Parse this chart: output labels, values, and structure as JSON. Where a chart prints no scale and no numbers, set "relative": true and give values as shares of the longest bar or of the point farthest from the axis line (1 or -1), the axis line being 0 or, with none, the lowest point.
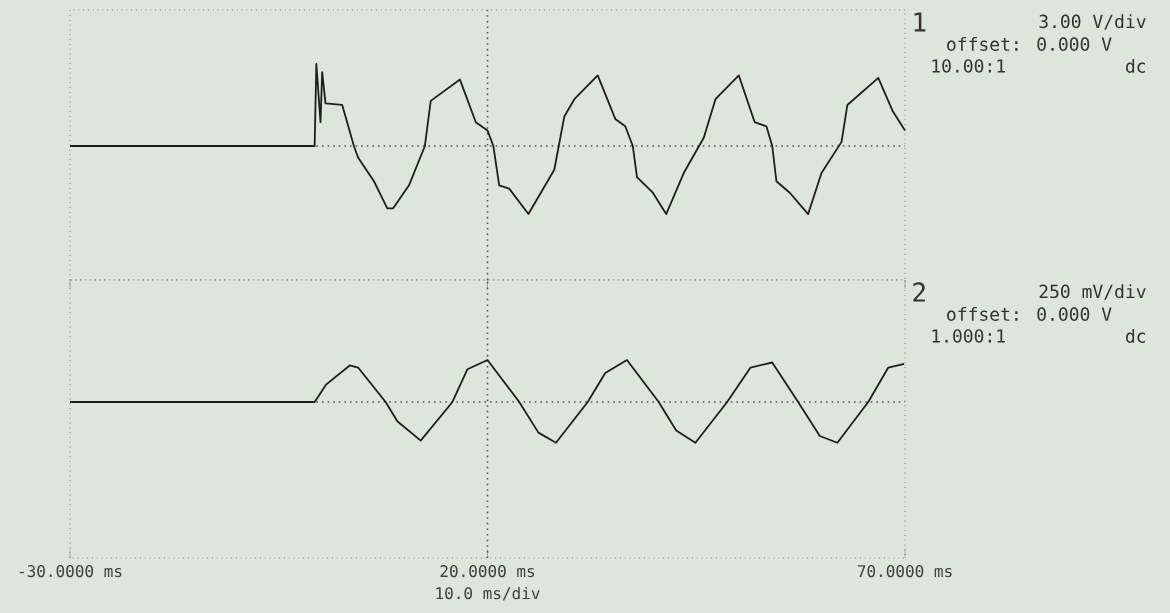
{
  "chart_data": [
    {
      "type": "line",
      "relative": true,
      "xlim": [
        -30,
        70
      ],
      "tick_labels": false,
      "grid": false,
      "annotations": [
        "1",
        "3.00 V/div",
        "offset: 0.000 V",
        "10.00:1",
        "dc"
      ],
      "ref_lines": [
        {
          "axis": "y",
          "value": 0,
          "line_style": "dotted",
          "color": "#555555"
        },
        {
          "axis": "x",
          "value": 20,
          "line_style": "dotted",
          "color": "#555555"
        }
      ],
      "series": [
        {
          "color": "#1e1e1e",
          "x": [
            -30,
            -0.7,
            -0.5,
            0,
            0.2,
            0.6,
            2.6,
            4.0,
            4.5,
            6.4,
            8.0,
            8.7,
            10.6,
            12.5,
            13.2,
            16.7,
            18.6,
            20,
            20.7,
            21.4,
            22.6,
            24.9,
            28,
            29.2,
            30.4,
            33.2,
            35.3,
            36.5,
            37.4,
            37.9,
            39.8,
            41.4,
            43.5,
            45.9,
            47.3,
            50.1,
            52,
            53.4,
            54.1,
            54.6,
            56.2,
            58.4,
            60,
            62.4,
            63.1,
            66.8,
            68.5,
            70
          ],
          "values": [
            0,
            0,
            1.0,
            0.29,
            0.9,
            0.52,
            0.5,
            0,
            -0.14,
            -0.43,
            -0.76,
            -0.76,
            -0.48,
            0,
            0.55,
            0.81,
            0.29,
            0.19,
            0,
            -0.48,
            -0.52,
            -0.83,
            -0.29,
            0.36,
            0.57,
            0.86,
            0.33,
            0.24,
            0,
            -0.38,
            -0.57,
            -0.83,
            -0.33,
            0.1,
            0.57,
            0.86,
            0.29,
            0.24,
            0,
            -0.43,
            -0.57,
            -0.83,
            -0.33,
            0.05,
            0.5,
            0.83,
            0.43,
            0.19
          ]
        }
      ]
    },
    {
      "type": "line",
      "relative": true,
      "xlim": [
        -30,
        70
      ],
      "xticks": [
        {
          "value": -30,
          "label": "-30.0000 ms"
        },
        {
          "value": 20,
          "label": "20.0000 ms"
        },
        {
          "value": 70,
          "label": "70.0000 ms"
        }
      ],
      "tick_labels": "x",
      "grid": false,
      "xlabel": "10.0 ms/div",
      "annotations": [
        "2",
        "250 mV/div",
        "offset: 0.000 V",
        "1.000:1",
        "dc"
      ],
      "ref_lines": [
        {
          "axis": "y",
          "value": 0,
          "line_style": "dotted",
          "color": "#555555"
        },
        {
          "axis": "x",
          "value": 20,
          "line_style": "dotted",
          "color": "#555555"
        }
      ],
      "series": [
        {
          "color": "#1e1e1e",
          "x": [
            -30,
            -0.7,
            0.7,
            3.5,
            4.5,
            7.8,
            9.2,
            12,
            15.8,
            17.6,
            20,
            23.8,
            26.1,
            28.2,
            32,
            34.1,
            36.7,
            40.5,
            42.6,
            44.9,
            48.7,
            51.5,
            54.1,
            57.2,
            59.8,
            61.9,
            65.6,
            68,
            69.9
          ],
          "values": [
            0,
            0,
            0.42,
            0.87,
            0.82,
            0,
            -0.46,
            -0.92,
            0,
            0.78,
            1.0,
            0,
            -0.73,
            -0.97,
            0,
            0.69,
            1.0,
            0,
            -0.68,
            -0.97,
            0,
            0.82,
            0.94,
            0,
            -0.81,
            -0.97,
            0,
            0.82,
            0.91
          ]
        }
      ]
    }
  ]
}
